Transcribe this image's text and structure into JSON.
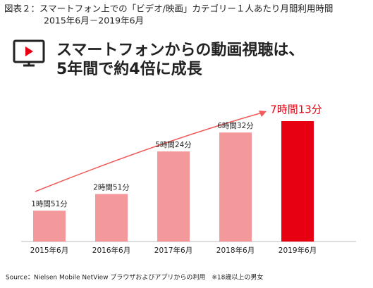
{
  "chart_data": {
    "type": "bar",
    "title": "図表２：スマートフォン上での「ビデオ/映画」カテゴリー１人あたり月間利用時間",
    "subtitle": "2015年6月－2019年6月",
    "headline": [
      "スマートフォンからの動画視聴は、",
      "5年間で約4倍に成長"
    ],
    "categories": [
      "2015年6月",
      "2016年6月",
      "2017年6月",
      "2018年6月",
      "2019年6月"
    ],
    "values": [
      111,
      171,
      324,
      392,
      433
    ],
    "value_labels": [
      "1時間51分",
      "2時間51分",
      "5時間24分",
      "6時間32分",
      "7時間13分"
    ],
    "colors": [
      "#f4999b",
      "#f4999b",
      "#f4999b",
      "#f4999b",
      "#e60012"
    ],
    "source": "Source：Nielsen Mobile NetView ブラウザおよびアプリからの利用　※18歳以上の男女"
  }
}
